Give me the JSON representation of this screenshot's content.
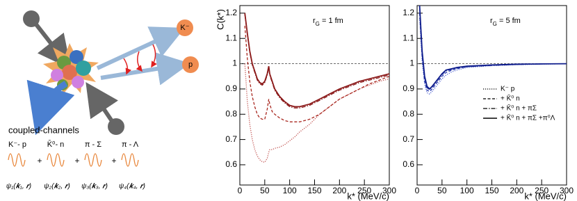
{
  "diagram": {
    "particles": [
      "K⁻",
      "p"
    ],
    "caption": "coupled-channels",
    "channels": [
      "K⁻- p",
      "K̄⁰- n",
      "π - Σ",
      "π - Λ"
    ],
    "operators": [
      "+",
      "+",
      "+"
    ],
    "wavefunctions": [
      "ψ₁(𝒌₁, 𝒓)",
      "ψ₂(𝒌₂, 𝒓)",
      "ψ₃(𝒌₃, 𝒓)",
      "ψ₄(𝒌₄, 𝒓)"
    ]
  },
  "chart_data": [
    {
      "type": "line",
      "ylabel": "C(k*)",
      "xlabel": "k* (MeV/c)",
      "annotation": [
        "r",
        "G",
        " = 1 fm"
      ],
      "xlim": [
        0,
        300
      ],
      "ylim": [
        0.52,
        1.23
      ],
      "xticks": [
        0,
        50,
        100,
        150,
        200,
        250,
        300
      ],
      "yticks": [
        0.6,
        0.7,
        0.8,
        0.9,
        1,
        1.1,
        1.2
      ],
      "reference_line": 1,
      "legend": false,
      "x": [
        10,
        15,
        20,
        25,
        30,
        35,
        40,
        45,
        50,
        55,
        58,
        60,
        65,
        70,
        80,
        90,
        100,
        110,
        120,
        140,
        160,
        180,
        200,
        220,
        240,
        260,
        280,
        300
      ],
      "series": [
        {
          "color": "#c0504d",
          "dash": "dotted",
          "values": [
            1.0,
            0.85,
            0.76,
            0.7,
            0.66,
            0.635,
            0.62,
            0.612,
            0.61,
            0.625,
            0.65,
            0.66,
            0.66,
            0.665,
            0.67,
            0.68,
            0.695,
            0.71,
            0.73,
            0.76,
            0.8,
            0.83,
            0.86,
            0.88,
            0.9,
            0.915,
            0.93,
            0.94
          ]
        },
        {
          "color": "#a8261e",
          "dash": "dashed",
          "values": [
            1.15,
            1.02,
            0.93,
            0.87,
            0.83,
            0.8,
            0.785,
            0.78,
            0.78,
            0.82,
            0.86,
            0.84,
            0.81,
            0.8,
            0.785,
            0.775,
            0.77,
            0.77,
            0.77,
            0.78,
            0.8,
            0.83,
            0.86,
            0.88,
            0.9,
            0.92,
            0.935,
            0.95
          ]
        },
        {
          "color": "#8b1a1a",
          "dash": "dashdot",
          "values": [
            1.195,
            1.115,
            1.045,
            0.995,
            0.965,
            0.935,
            0.92,
            0.915,
            0.925,
            0.955,
            0.985,
            0.955,
            0.925,
            0.895,
            0.865,
            0.845,
            0.83,
            0.825,
            0.825,
            0.835,
            0.855,
            0.875,
            0.895,
            0.91,
            0.925,
            0.935,
            0.945,
            0.955
          ]
        },
        {
          "color": "#8b1a1a",
          "dash": "solid",
          "values": [
            1.2,
            1.12,
            1.05,
            1.0,
            0.97,
            0.94,
            0.925,
            0.92,
            0.93,
            0.96,
            0.99,
            0.96,
            0.93,
            0.9,
            0.87,
            0.85,
            0.835,
            0.83,
            0.83,
            0.84,
            0.86,
            0.88,
            0.9,
            0.915,
            0.93,
            0.94,
            0.95,
            0.96
          ]
        }
      ]
    },
    {
      "type": "line",
      "xlabel": "k* (MeV/c)",
      "annotation": [
        "r",
        "G",
        " = 5 fm"
      ],
      "xlim": [
        0,
        300
      ],
      "ylim": [
        0.52,
        1.23
      ],
      "xticks": [
        0,
        50,
        100,
        150,
        200,
        250,
        300
      ],
      "yticks": [
        0.6,
        0.7,
        0.8,
        0.9,
        1,
        1.1,
        1.2
      ],
      "reference_line": 1,
      "legend": "right",
      "x": [
        5,
        10,
        15,
        20,
        25,
        30,
        40,
        50,
        58,
        70,
        80,
        100,
        150,
        200,
        250,
        300
      ],
      "series": [
        {
          "name": "K⁻ p",
          "color": "#4a5fd0",
          "dash": "dotted",
          "values": [
            1.18,
            1.01,
            0.92,
            0.885,
            0.88,
            0.89,
            0.915,
            0.94,
            0.955,
            0.968,
            0.975,
            0.985,
            0.992,
            0.996,
            0.998,
            1.0
          ]
        },
        {
          "name": "+ K̄⁰ n",
          "color": "#2a3cb0",
          "dash": "dashed",
          "values": [
            1.2,
            1.03,
            0.93,
            0.895,
            0.89,
            0.9,
            0.925,
            0.95,
            0.965,
            0.975,
            0.98,
            0.988,
            0.994,
            0.997,
            0.999,
            1.0
          ]
        },
        {
          "name": "+ K̄⁰ n + πΣ",
          "color": "#1a2a9a",
          "dash": "dashdot",
          "values": [
            1.225,
            1.045,
            0.945,
            0.905,
            0.897,
            0.907,
            0.932,
            0.957,
            0.972,
            0.978,
            0.983,
            0.988,
            0.993,
            0.997,
            0.999,
            1.0
          ]
        },
        {
          "name": "+ K̄⁰ n + πΣ +π⁰Λ",
          "color": "#101e8c",
          "dash": "solid",
          "values": [
            1.23,
            1.05,
            0.95,
            0.91,
            0.9,
            0.91,
            0.935,
            0.96,
            0.975,
            0.98,
            0.985,
            0.99,
            0.995,
            0.998,
            0.999,
            1.0
          ]
        }
      ]
    }
  ]
}
